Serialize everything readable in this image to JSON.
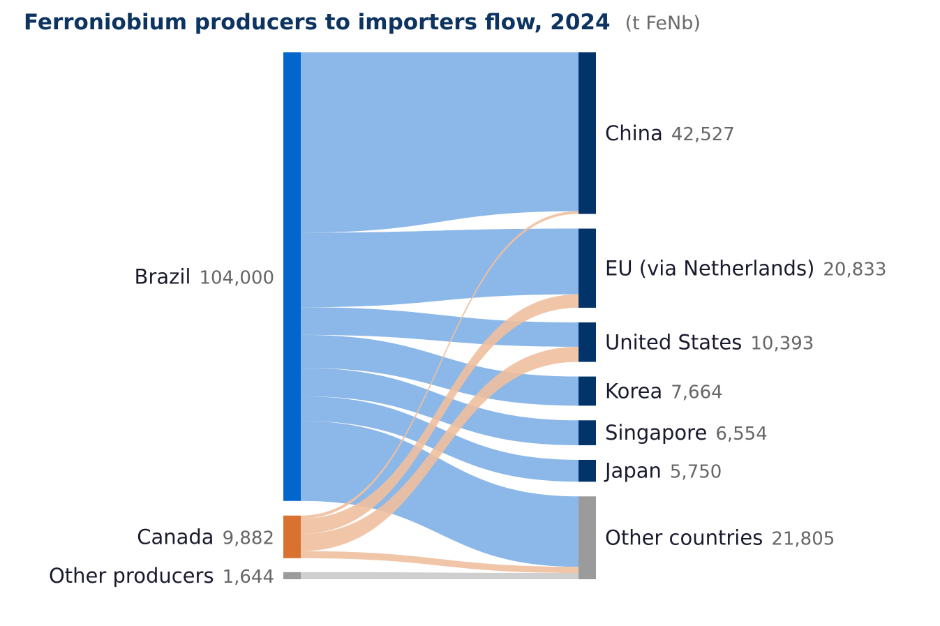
{
  "chart_data": {
    "type": "sankey",
    "title": "Ferroniobium producers to importers flow, 2024",
    "unit": "(t FeNb)",
    "sources": [
      {
        "name": "Brazil",
        "value_label": "104,000",
        "value": 104000,
        "color": "#0366cc",
        "flow_color": "#8bb8e8"
      },
      {
        "name": "Canada",
        "value_label": "9,882",
        "value": 9882,
        "color": "#d97230",
        "flow_color": "#efbf9f"
      },
      {
        "name": "Other producers",
        "value_label": "1,644",
        "value": 1644,
        "color": "#9b9b9b",
        "flow_color": "#cfcfcf"
      }
    ],
    "targets": [
      {
        "name": "China",
        "value_label": "42,527",
        "value": 42527,
        "color": "#02346a"
      },
      {
        "name": "EU (via Netherlands)",
        "value_label": "20,833",
        "value": 20833,
        "color": "#02346a"
      },
      {
        "name": "United States",
        "value_label": "10,393",
        "value": 10393,
        "color": "#02346a"
      },
      {
        "name": "Korea",
        "value_label": "7,664",
        "value": 7664,
        "color": "#02346a"
      },
      {
        "name": "Singapore",
        "value_label": "6,554",
        "value": 6554,
        "color": "#02346a"
      },
      {
        "name": "Japan",
        "value_label": "5,750",
        "value": 5750,
        "color": "#02346a"
      },
      {
        "name": "Other countries",
        "value_label": "21,805",
        "value": 21805,
        "color": "#9b9b9b"
      }
    ],
    "links": [
      {
        "source": "Brazil",
        "target": "China",
        "value": 41800
      },
      {
        "source": "Brazil",
        "target": "EU (via Netherlands)",
        "value": 17300
      },
      {
        "source": "Brazil",
        "target": "United States",
        "value": 6400
      },
      {
        "source": "Brazil",
        "target": "Korea",
        "value": 7664
      },
      {
        "source": "Brazil",
        "target": "Singapore",
        "value": 6554
      },
      {
        "source": "Brazil",
        "target": "Japan",
        "value": 5750
      },
      {
        "source": "Brazil",
        "target": "Other countries",
        "value": 18532
      },
      {
        "source": "Canada",
        "target": "China",
        "value": 727
      },
      {
        "source": "Canada",
        "target": "EU (via Netherlands)",
        "value": 3533
      },
      {
        "source": "Canada",
        "target": "United States",
        "value": 3993
      },
      {
        "source": "Canada",
        "target": "Other countries",
        "value": 1629
      },
      {
        "source": "Other producers",
        "target": "Other countries",
        "value": 1644
      }
    ]
  }
}
